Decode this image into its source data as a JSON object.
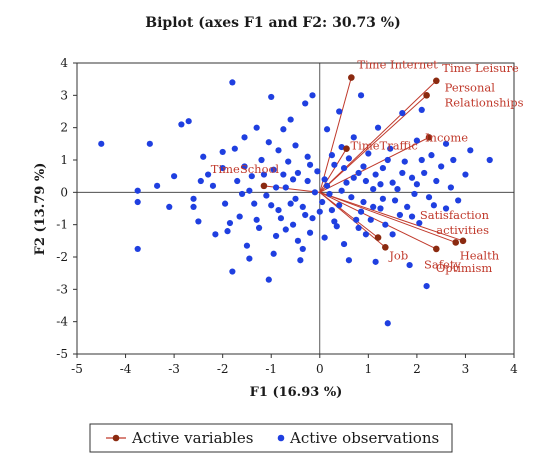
{
  "chart_data": {
    "type": "scatter",
    "title": "Biplot (axes F1 and F2: 30.73 %)",
    "xlabel": "F1 (16.93 %)",
    "ylabel": "F2 (13.79 %)",
    "xlim": [
      -5,
      4
    ],
    "ylim": [
      -5,
      4
    ],
    "xticks": [
      "-5",
      "-4",
      "-3",
      "-2",
      "-1",
      "0",
      "1",
      "2",
      "3",
      "4"
    ],
    "yticks": [
      "-5",
      "-4",
      "-3",
      "-2",
      "-1",
      "0",
      "1",
      "2",
      "3",
      "4"
    ],
    "grid": false,
    "legend": {
      "placement": "bottom",
      "entries": [
        "Active variables",
        "Active observations"
      ]
    },
    "colors": {
      "variables": "#8b2a10",
      "observations": "#1f3fe0",
      "lines": "#c0392b",
      "labels": "#c0392b"
    },
    "variables": [
      {
        "name": "Time Internet",
        "x": 0.65,
        "y": 3.55
      },
      {
        "name": "Time Leisure",
        "x": 2.4,
        "y": 3.45
      },
      {
        "name": "Personal Relationships",
        "x": 2.2,
        "y": 3.0
      },
      {
        "name": "Income",
        "x": 2.25,
        "y": 1.7
      },
      {
        "name": "TimeTraffic",
        "x": 0.55,
        "y": 1.35
      },
      {
        "name": "TimeSchool",
        "x": -1.15,
        "y": 0.2
      },
      {
        "name": "Satisfaction activities",
        "x": 2.95,
        "y": -1.5
      },
      {
        "name": "Health",
        "x": 2.8,
        "y": -1.55
      },
      {
        "name": "Optimism",
        "x": 2.4,
        "y": -1.75
      },
      {
        "name": "Job",
        "x": 1.35,
        "y": -1.7
      },
      {
        "name": "Safety",
        "x": 1.2,
        "y": -1.4
      }
    ],
    "observations": [
      [
        -4.5,
        1.5
      ],
      [
        -3.75,
        0.05
      ],
      [
        -3.75,
        -0.3
      ],
      [
        -3.75,
        -1.75
      ],
      [
        -3.5,
        1.5
      ],
      [
        -3.35,
        0.2
      ],
      [
        -3.1,
        -0.45
      ],
      [
        -3.0,
        0.5
      ],
      [
        -2.85,
        2.1
      ],
      [
        -2.7,
        2.2
      ],
      [
        -2.6,
        -0.2
      ],
      [
        -2.5,
        -0.9
      ],
      [
        -2.4,
        1.1
      ],
      [
        -2.3,
        0.55
      ],
      [
        -2.15,
        -1.3
      ],
      [
        -1.9,
        -1.2
      ],
      [
        -1.8,
        3.4
      ],
      [
        -1.8,
        -2.45
      ],
      [
        -1.75,
        1.35
      ],
      [
        -1.6,
        -0.05
      ],
      [
        -1.55,
        0.8
      ],
      [
        -1.5,
        -1.65
      ],
      [
        -1.45,
        -2.05
      ],
      [
        -1.3,
        2.0
      ],
      [
        -1.25,
        -1.1
      ],
      [
        -1.15,
        0.55
      ],
      [
        -1.05,
        -2.7
      ],
      [
        -1.0,
        2.95
      ],
      [
        -0.95,
        -1.9
      ],
      [
        -0.9,
        0.15
      ],
      [
        -0.85,
        -0.55
      ],
      [
        -0.8,
        -0.8
      ],
      [
        -0.75,
        1.95
      ],
      [
        -0.7,
        -1.15
      ],
      [
        -0.6,
        2.25
      ],
      [
        -0.55,
        0.4
      ],
      [
        -0.5,
        -0.2
      ],
      [
        -0.45,
        -1.5
      ],
      [
        -0.4,
        -2.1
      ],
      [
        -0.3,
        2.75
      ],
      [
        -0.3,
        -0.7
      ],
      [
        -0.25,
        1.1
      ],
      [
        -0.2,
        -1.25
      ],
      [
        -0.15,
        3.0
      ],
      [
        -0.1,
        0.0
      ],
      [
        0.05,
        -0.3
      ],
      [
        0.1,
        0.4
      ],
      [
        0.15,
        1.95
      ],
      [
        0.2,
        -0.05
      ],
      [
        0.25,
        -0.55
      ],
      [
        0.3,
        0.85
      ],
      [
        0.35,
        -1.05
      ],
      [
        0.4,
        2.5
      ],
      [
        0.45,
        1.4
      ],
      [
        0.5,
        -1.6
      ],
      [
        0.55,
        0.3
      ],
      [
        0.6,
        -2.1
      ],
      [
        0.7,
        1.7
      ],
      [
        0.75,
        -0.85
      ],
      [
        0.8,
        0.6
      ],
      [
        0.85,
        3.0
      ],
      [
        0.9,
        -0.3
      ],
      [
        0.95,
        -1.3
      ],
      [
        1.0,
        1.2
      ],
      [
        1.1,
        0.1
      ],
      [
        1.15,
        -2.15
      ],
      [
        1.2,
        2.0
      ],
      [
        1.25,
        -0.5
      ],
      [
        1.3,
        0.75
      ],
      [
        1.35,
        -1.0
      ],
      [
        1.4,
        -4.05
      ],
      [
        1.45,
        1.35
      ],
      [
        1.5,
        0.3
      ],
      [
        1.55,
        -0.25
      ],
      [
        1.65,
        -0.7
      ],
      [
        1.7,
        2.45
      ],
      [
        1.75,
        0.95
      ],
      [
        1.85,
        -2.25
      ],
      [
        1.9,
        0.45
      ],
      [
        1.95,
        -0.05
      ],
      [
        2.0,
        1.6
      ],
      [
        2.05,
        -0.95
      ],
      [
        2.1,
        2.55
      ],
      [
        2.15,
        0.6
      ],
      [
        2.2,
        -2.9
      ],
      [
        2.3,
        1.15
      ],
      [
        2.35,
        -0.4
      ],
      [
        2.5,
        0.8
      ],
      [
        2.6,
        1.5
      ],
      [
        2.7,
        0.15
      ],
      [
        2.75,
        1.0
      ],
      [
        2.85,
        -0.25
      ],
      [
        3.0,
        0.55
      ],
      [
        3.1,
        1.3
      ],
      [
        3.5,
        1.0
      ],
      [
        -2.2,
        0.2
      ],
      [
        -2.0,
        0.75
      ],
      [
        -1.95,
        -0.35
      ],
      [
        -1.7,
        0.35
      ],
      [
        -1.65,
        -0.75
      ],
      [
        -1.4,
        0.5
      ],
      [
        -1.35,
        -0.35
      ],
      [
        -1.2,
        1.0
      ],
      [
        -1.1,
        -0.1
      ],
      [
        -1.05,
        1.55
      ],
      [
        -0.95,
        0.7
      ],
      [
        -0.85,
        1.3
      ],
      [
        -0.7,
        0.15
      ],
      [
        -0.65,
        0.95
      ],
      [
        -0.55,
        -1.0
      ],
      [
        -0.45,
        0.6
      ],
      [
        -0.35,
        -0.45
      ],
      [
        -0.25,
        0.35
      ],
      [
        -0.15,
        -0.8
      ],
      [
        -0.05,
        0.65
      ],
      [
        0.1,
        -1.4
      ],
      [
        0.25,
        1.15
      ],
      [
        0.4,
        -0.4
      ],
      [
        0.5,
        0.75
      ],
      [
        0.65,
        -0.15
      ],
      [
        0.7,
        0.45
      ],
      [
        0.85,
        -0.6
      ],
      [
        0.95,
        0.35
      ],
      [
        1.05,
        -0.85
      ],
      [
        1.15,
        0.55
      ],
      [
        1.3,
        -0.2
      ],
      [
        1.4,
        1.0
      ],
      [
        1.6,
        0.1
      ],
      [
        1.8,
        -0.45
      ],
      [
        2.0,
        0.25
      ],
      [
        2.25,
        -0.15
      ],
      [
        2.4,
        0.35
      ],
      [
        2.6,
        -0.5
      ],
      [
        -2.6,
        -0.45
      ],
      [
        -2.45,
        0.35
      ],
      [
        -2.0,
        1.25
      ],
      [
        -1.85,
        -0.95
      ],
      [
        -1.55,
        1.7
      ],
      [
        -1.45,
        0.05
      ],
      [
        -1.3,
        -0.85
      ],
      [
        -1.0,
        -0.4
      ],
      [
        -0.9,
        -1.35
      ],
      [
        -0.75,
        0.55
      ],
      [
        -0.6,
        -0.35
      ],
      [
        -0.5,
        1.45
      ],
      [
        -0.35,
        -1.75
      ],
      [
        -0.2,
        0.85
      ],
      [
        0.0,
        -0.6
      ],
      [
        0.15,
        0.2
      ],
      [
        0.3,
        -0.9
      ],
      [
        0.45,
        0.05
      ],
      [
        0.6,
        1.05
      ],
      [
        0.8,
        -1.1
      ],
      [
        0.9,
        0.8
      ],
      [
        1.1,
        -0.45
      ],
      [
        1.25,
        0.25
      ],
      [
        1.5,
        -1.3
      ],
      [
        1.7,
        0.6
      ],
      [
        1.9,
        -0.75
      ],
      [
        2.1,
        1.0
      ]
    ]
  }
}
